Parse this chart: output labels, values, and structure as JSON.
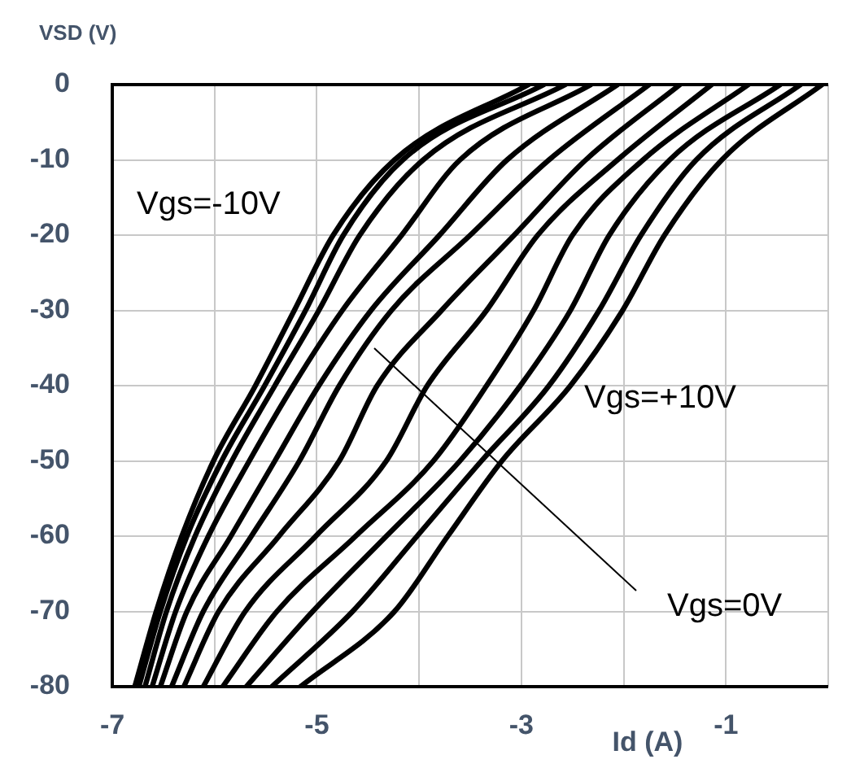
{
  "chart_data": {
    "type": "line",
    "xlabel": "Id (A)",
    "ylabel": "VSD (V)",
    "xlim": [
      -7,
      0
    ],
    "xticks": [
      -7,
      {
        "value": -6,
        "label": null
      },
      -5,
      {
        "value": -4,
        "label": null
      },
      -3,
      {
        "value": -2,
        "label": null
      },
      -1,
      {
        "value": 0,
        "label": null
      }
    ],
    "ylim": [
      -80,
      0
    ],
    "yticks": [
      0,
      -10,
      -20,
      -30,
      -40,
      -50,
      -60,
      -70,
      -80
    ],
    "grid": true,
    "marker": "none",
    "line_style": "solid",
    "annotations": [
      "Vgs=-10V",
      "Vgs=+10V",
      "Vgs=0V"
    ],
    "series": [
      {
        "color": "#000000",
        "x": [
          -6.78,
          -6.57,
          -6.32,
          -6.01,
          -5.6,
          -5.22,
          -4.84,
          -4.24,
          -2.93
        ],
        "values": [
          -80,
          -70,
          -60,
          -50,
          -40,
          -30,
          -20,
          -10,
          0
        ]
      },
      {
        "color": "#000000",
        "x": [
          -6.74,
          -6.53,
          -6.27,
          -5.93,
          -5.51,
          -5.11,
          -4.74,
          -4.16,
          -2.78
        ],
        "values": [
          -80,
          -70,
          -60,
          -50,
          -40,
          -30,
          -20,
          -10,
          0
        ]
      },
      {
        "color": "#000000",
        "x": [
          -6.68,
          -6.47,
          -6.19,
          -5.83,
          -5.41,
          -4.98,
          -4.58,
          -3.96,
          -2.57
        ],
        "values": [
          -80,
          -70,
          -60,
          -50,
          -40,
          -30,
          -20,
          -10,
          0
        ]
      },
      {
        "color": "#000000",
        "x": [
          -6.61,
          -6.38,
          -6.06,
          -5.66,
          -5.23,
          -4.75,
          -4.17,
          -3.6,
          -2.32
        ],
        "values": [
          -80,
          -70,
          -60,
          -50,
          -40,
          -30,
          -20,
          -10,
          0
        ]
      },
      {
        "color": "#000000",
        "x": [
          -6.53,
          -6.27,
          -5.84,
          -5.41,
          -4.98,
          -4.47,
          -3.8,
          -3.14,
          -2.06
        ],
        "values": [
          -80,
          -70,
          -60,
          -50,
          -40,
          -30,
          -20,
          -10,
          0
        ]
      },
      {
        "color": "#000000",
        "x": [
          -6.42,
          -6.11,
          -5.64,
          -5.17,
          -4.78,
          -4.27,
          -3.5,
          -2.73,
          -1.75
        ],
        "values": [
          -80,
          -70,
          -60,
          -50,
          -40,
          -30,
          -20,
          -10,
          0
        ]
      },
      {
        "color": "#000000",
        "x": [
          -6.3,
          -5.96,
          -5.37,
          -4.78,
          -4.41,
          -3.78,
          -3.07,
          -2.37,
          -1.45
        ],
        "values": [
          -80,
          -70,
          -60,
          -50,
          -40,
          -30,
          -20,
          -10,
          0
        ]
      },
      {
        "color": "#000000",
        "x": [
          -6.11,
          -5.7,
          -5.01,
          -4.32,
          -3.92,
          -3.34,
          -2.84,
          -2.06,
          -1.14
        ],
        "values": [
          -80,
          -70,
          -60,
          -50,
          -40,
          -30,
          -20,
          -10,
          0
        ]
      },
      {
        "color": "#000000",
        "x": [
          -5.92,
          -5.39,
          -4.62,
          -3.86,
          -3.34,
          -2.88,
          -2.5,
          -1.81,
          -0.78
        ],
        "values": [
          -80,
          -70,
          -60,
          -50,
          -40,
          -30,
          -20,
          -10,
          0
        ]
      },
      {
        "color": "#000000",
        "x": [
          -5.69,
          -5.04,
          -4.32,
          -3.6,
          -3.01,
          -2.52,
          -2.14,
          -1.55,
          -0.47
        ],
        "values": [
          -80,
          -70,
          -60,
          -50,
          -40,
          -30,
          -20,
          -10,
          0
        ]
      },
      {
        "color": "#000000",
        "x": [
          -5.44,
          -4.65,
          -4.02,
          -3.39,
          -2.73,
          -2.24,
          -1.83,
          -1.29,
          -0.27
        ],
        "values": [
          -80,
          -70,
          -60,
          -50,
          -40,
          -30,
          -20,
          -10,
          0
        ]
      },
      {
        "color": "#000000",
        "x": [
          -5.16,
          -4.24,
          -3.72,
          -3.19,
          -2.52,
          -2.01,
          -1.6,
          -1.04,
          -0.06
        ],
        "values": [
          -80,
          -70,
          -60,
          -50,
          -40,
          -30,
          -20,
          -10,
          0
        ]
      }
    ]
  }
}
